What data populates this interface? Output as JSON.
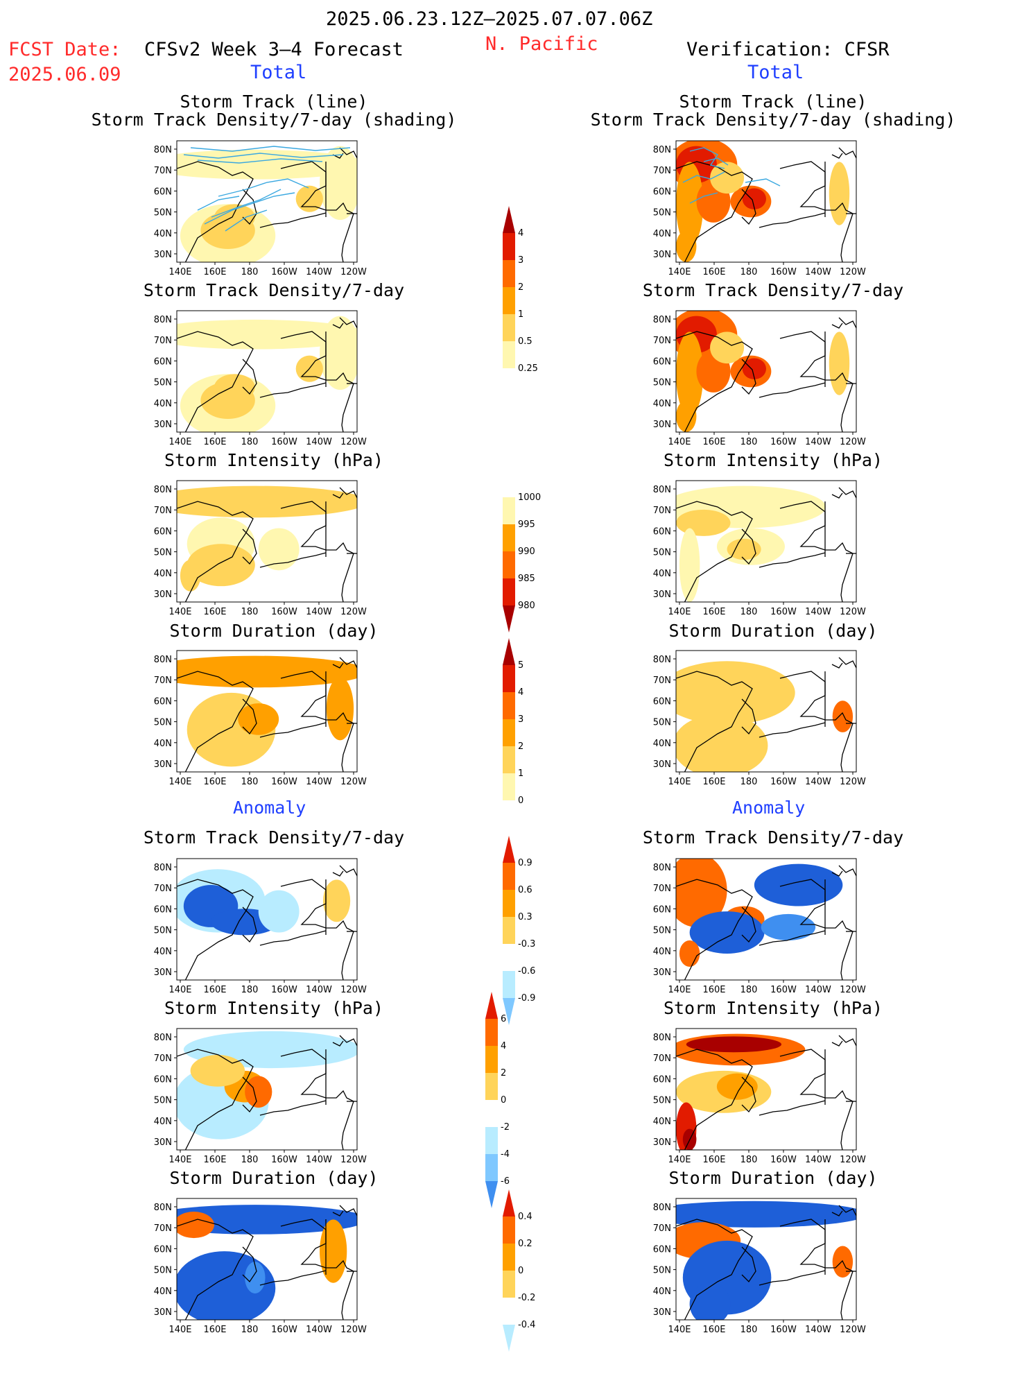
{
  "header": {
    "date_range": "2025.06.23.12Z–2025.07.07.06Z",
    "region": "N. Pacific",
    "fcst_date_label": "FCST Date:",
    "fcst_date_value": "2025.06.09",
    "left_title": "CFSv2 Week 3–4 Forecast",
    "right_title": "Verification: CFSR",
    "total_left": "Total",
    "total_right": "Total",
    "anomaly_left": "Anomaly",
    "anomaly_right": "Anomaly"
  },
  "axes": {
    "lon_ticks": [
      "140E",
      "160E",
      "180",
      "160W",
      "140W",
      "120W"
    ],
    "lat_ticks": [
      "80N",
      "70N",
      "60N",
      "50N",
      "40N",
      "30N"
    ]
  },
  "panels": {
    "track_l1": "Storm Track (line)",
    "track_l2": "Storm Track Density/7-day (shading)",
    "density": "Storm Track Density/7-day",
    "intensity": "Storm Intensity (hPa)",
    "duration": "Storm Duration (day)"
  },
  "colorbars": {
    "density": [
      "4",
      "3",
      "2",
      "1",
      "0.5",
      "0.25"
    ],
    "intensity": [
      "1000",
      "995",
      "990",
      "985",
      "980"
    ],
    "duration": [
      "5",
      "4",
      "3",
      "2",
      "1",
      "0"
    ],
    "density_anom": [
      "0.9",
      "0.6",
      "0.3",
      "-0.3",
      "-0.6",
      "-0.9"
    ],
    "intensity_anom": [
      "6",
      "4",
      "2",
      "0",
      "-2",
      "-4",
      "-6"
    ],
    "duration_anom": [
      "0.4",
      "0.2",
      "0",
      "-0.2",
      "-0.4"
    ]
  },
  "colors": {
    "pale_yellow": "#fff7b0",
    "light_orange": "#ffd45a",
    "orange": "#ffa000",
    "dark_orange": "#ff6a00",
    "red": "#e21b00",
    "dark_red": "#a80000",
    "pale_blue": "#b8ecff",
    "light_blue": "#7fc8ff",
    "mid_blue": "#3f8ff0",
    "blue": "#1e5fd8",
    "track_line": "#3aa8e0",
    "header_red": "#ff2a2a",
    "header_blue": "#1f3fff"
  }
}
